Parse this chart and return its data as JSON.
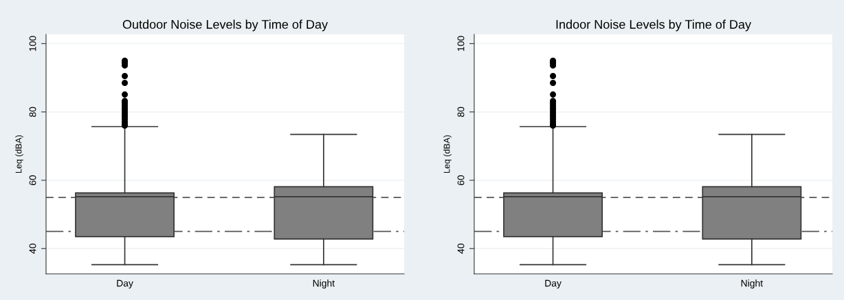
{
  "chart_data": [
    {
      "type": "box",
      "title": "Outdoor Noise Levels by Time of Day",
      "ylabel": "Leq (dBA)",
      "categories": [
        "Day",
        "Night"
      ],
      "color": "#808080",
      "boxes": [
        {
          "low": 35.3,
          "q1": 43.5,
          "median": 55.2,
          "q3": 56.3,
          "high": 75.7,
          "outliers": [
            95.0,
            94.6,
            94.3,
            93.6,
            90.5,
            88.5,
            85.1,
            83.2,
            82.6,
            81.9,
            81.2,
            80.6,
            79.9,
            79.2,
            78.6,
            77.9,
            77.2,
            76.5,
            76.0
          ]
        },
        {
          "low": 35.3,
          "q1": 42.8,
          "median": 55.2,
          "q3": 58.1,
          "high": 73.4
        }
      ],
      "ylim": [
        32.6,
        102.7
      ],
      "yticks": [
        40,
        60,
        80,
        100
      ],
      "grid": "y",
      "ref_lines": [
        {
          "axis": "y",
          "value": 55,
          "line_style": "dashed"
        },
        {
          "axis": "y",
          "value": 45,
          "line_style": "dashdot"
        }
      ]
    },
    {
      "type": "box",
      "title": "Indoor Noise Levels by Time of Day",
      "ylabel": "Leq (dBA)",
      "categories": [
        "Day",
        "Night"
      ],
      "color": "#808080",
      "boxes": [
        {
          "low": 35.3,
          "q1": 43.5,
          "median": 55.2,
          "q3": 56.3,
          "high": 75.7,
          "outliers": [
            95.0,
            94.6,
            94.3,
            93.6,
            90.5,
            88.5,
            85.1,
            83.2,
            82.6,
            81.9,
            81.2,
            80.6,
            79.9,
            79.2,
            78.6,
            77.9,
            77.2,
            76.5,
            76.0
          ]
        },
        {
          "low": 35.3,
          "q1": 42.8,
          "median": 55.2,
          "q3": 58.1,
          "high": 73.4
        }
      ],
      "ylim": [
        32.6,
        102.7
      ],
      "yticks": [
        40,
        60,
        80,
        100
      ],
      "grid": "y",
      "ref_lines": [
        {
          "axis": "y",
          "value": 55,
          "line_style": "dashed"
        },
        {
          "axis": "y",
          "value": 45,
          "line_style": "dashdot"
        }
      ]
    }
  ]
}
